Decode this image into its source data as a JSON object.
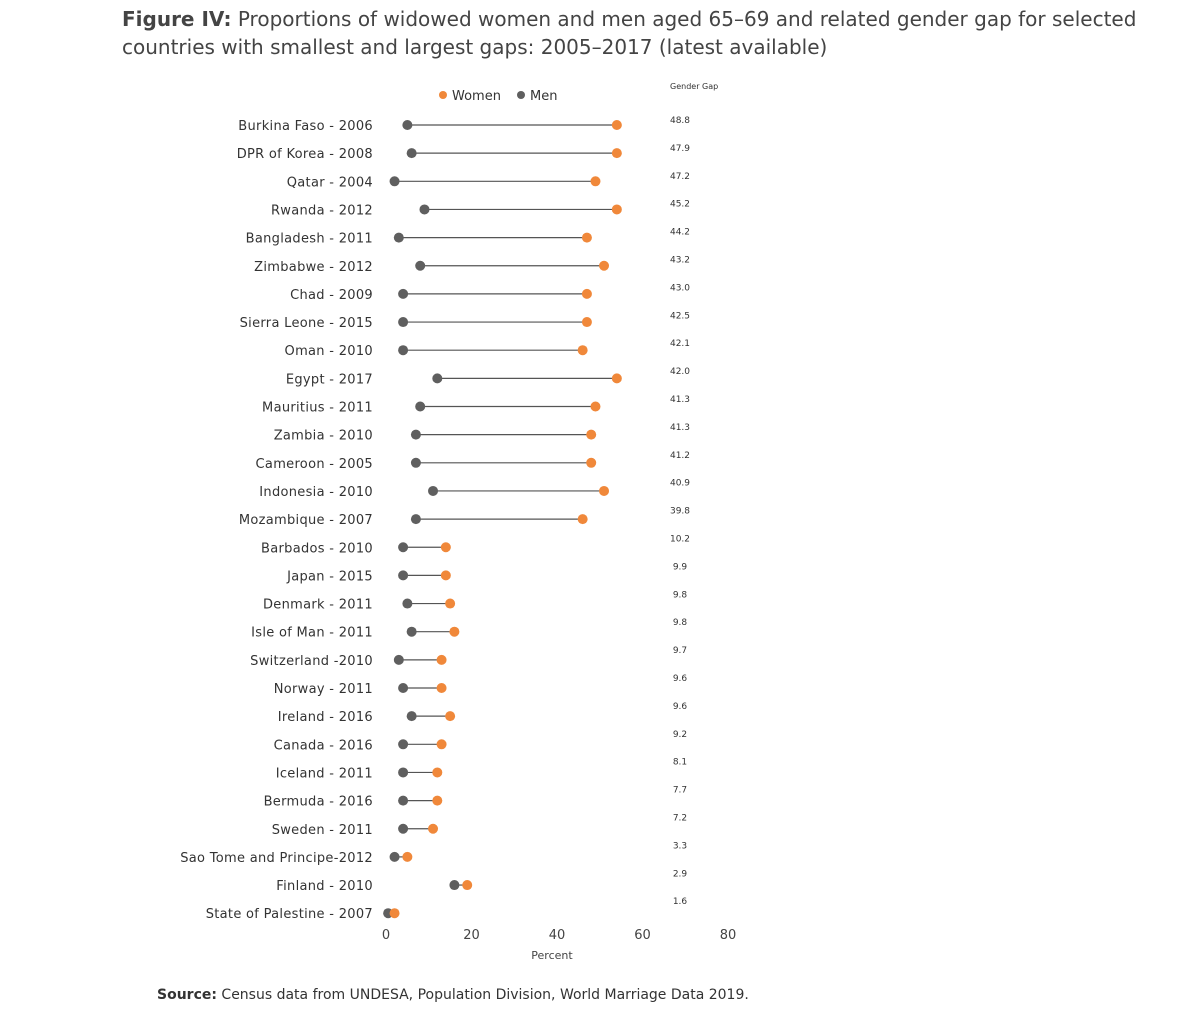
{
  "title": {
    "prefix": "Figure IV:",
    "text": "Proportions of widowed women and men aged 65–69 and related gender gap for selected countries with smallest and largest gaps: 2005–2017 (latest available)"
  },
  "source": {
    "label": "Source:",
    "text": "Census data from UNDESA, Population Division, World Marriage Data 2019."
  },
  "colors": {
    "women": "#F0883A",
    "men": "#5F5F5F",
    "line": "#555555"
  },
  "chart_data": {
    "type": "dumbbell",
    "xlabel": "Percent",
    "xlim": [
      0,
      80
    ],
    "xticks": [
      0,
      20,
      40,
      60,
      80
    ],
    "legend": [
      "Women",
      "Men"
    ],
    "gap_header": "Gender Gap",
    "rows": [
      {
        "label": "Burkina Faso - 2006",
        "men": 5,
        "women": 54,
        "gap": "48.8"
      },
      {
        "label": "DPR of Korea - 2008",
        "men": 6,
        "women": 54,
        "gap": "47.9"
      },
      {
        "label": "Qatar - 2004",
        "men": 2,
        "women": 49,
        "gap": "47.2"
      },
      {
        "label": "Rwanda - 2012",
        "men": 9,
        "women": 54,
        "gap": "45.2"
      },
      {
        "label": "Bangladesh - 2011",
        "men": 3,
        "women": 47,
        "gap": "44.2"
      },
      {
        "label": "Zimbabwe - 2012",
        "men": 8,
        "women": 51,
        "gap": "43.2"
      },
      {
        "label": "Chad - 2009",
        "men": 4,
        "women": 47,
        "gap": "43.0"
      },
      {
        "label": "Sierra Leone - 2015",
        "men": 4,
        "women": 47,
        "gap": "42.5"
      },
      {
        "label": "Oman - 2010",
        "men": 4,
        "women": 46,
        "gap": "42.1"
      },
      {
        "label": "Egypt - 2017",
        "men": 12,
        "women": 54,
        "gap": "42.0"
      },
      {
        "label": "Mauritius - 2011",
        "men": 8,
        "women": 49,
        "gap": "41.3"
      },
      {
        "label": "Zambia - 2010",
        "men": 7,
        "women": 48,
        "gap": "41.3"
      },
      {
        "label": "Cameroon - 2005",
        "men": 7,
        "women": 48,
        "gap": "41.2"
      },
      {
        "label": "Indonesia - 2010",
        "men": 11,
        "women": 51,
        "gap": "40.9"
      },
      {
        "label": "Mozambique - 2007",
        "men": 7,
        "women": 46,
        "gap": "39.8"
      },
      {
        "label": "Barbados - 2010",
        "men": 4,
        "women": 14,
        "gap": "10.2"
      },
      {
        "label": "Japan - 2015",
        "men": 4,
        "women": 14,
        "gap": "9.9"
      },
      {
        "label": "Denmark - 2011",
        "men": 5,
        "women": 15,
        "gap": "9.8"
      },
      {
        "label": "Isle of Man - 2011",
        "men": 6,
        "women": 16,
        "gap": "9.8"
      },
      {
        "label": "Switzerland -2010",
        "men": 3,
        "women": 13,
        "gap": "9.7"
      },
      {
        "label": "Norway - 2011",
        "men": 4,
        "women": 13,
        "gap": "9.6"
      },
      {
        "label": "Ireland - 2016",
        "men": 6,
        "women": 15,
        "gap": "9.6"
      },
      {
        "label": "Canada - 2016",
        "men": 4,
        "women": 13,
        "gap": "9.2"
      },
      {
        "label": "Iceland - 2011",
        "men": 4,
        "women": 12,
        "gap": "8.1"
      },
      {
        "label": "Bermuda - 2016",
        "men": 4,
        "women": 12,
        "gap": "7.7"
      },
      {
        "label": "Sweden - 2011",
        "men": 4,
        "women": 11,
        "gap": "7.2"
      },
      {
        "label": "Sao Tome and Principe-2012",
        "men": 2,
        "women": 5,
        "gap": "3.3"
      },
      {
        "label": "Finland - 2010",
        "men": 16,
        "women": 19,
        "gap": "2.9"
      },
      {
        "label": "State of Palestine - 2007",
        "men": 0.5,
        "women": 2,
        "gap": "1.6"
      }
    ]
  }
}
